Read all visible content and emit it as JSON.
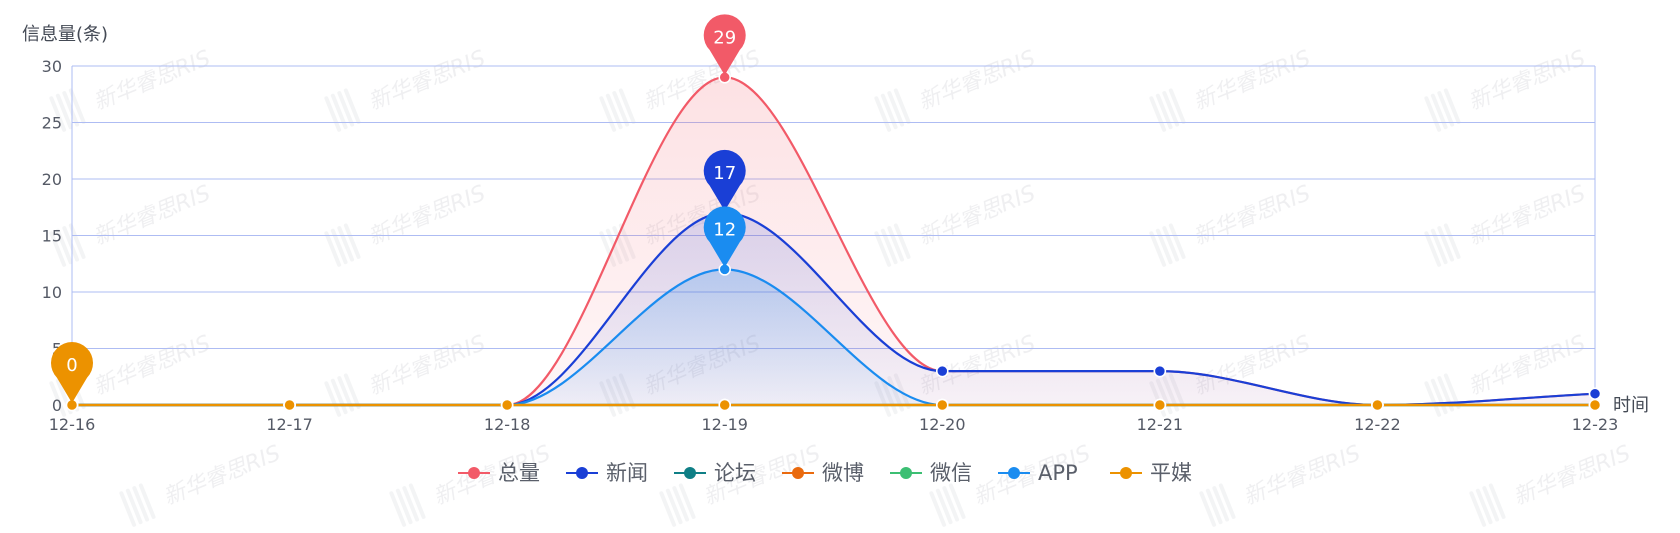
{
  "chart_data": {
    "type": "line",
    "title": "",
    "ylabel": "信息量(条)",
    "xlabel": "时间",
    "ylim": [
      0,
      30
    ],
    "yticks": [
      "0",
      "5",
      "10",
      "15",
      "20",
      "25",
      "30"
    ],
    "categories": [
      "12-16",
      "12-17",
      "12-18",
      "12-19",
      "12-20",
      "12-21",
      "12-22",
      "12-23"
    ],
    "series": [
      {
        "name": "总量",
        "color": "#f25a68",
        "area": true,
        "values": [
          0,
          0,
          0,
          29,
          3,
          3,
          0,
          1
        ]
      },
      {
        "name": "新闻",
        "color": "#1a3fd6",
        "area": true,
        "values": [
          0,
          0,
          0,
          17,
          3,
          3,
          0,
          1
        ]
      },
      {
        "name": "论坛",
        "color": "#0f7f86",
        "area": false,
        "values": [
          0,
          0,
          0,
          0,
          0,
          0,
          0,
          0
        ]
      },
      {
        "name": "微博",
        "color": "#ea6a0e",
        "area": false,
        "values": [
          0,
          0,
          0,
          0,
          0,
          0,
          0,
          0
        ]
      },
      {
        "name": "微信",
        "color": "#3cbf73",
        "area": false,
        "values": [
          0,
          0,
          0,
          0,
          0,
          0,
          0,
          0
        ]
      },
      {
        "name": "APP",
        "color": "#1a8cf0",
        "area": true,
        "values": [
          0,
          0,
          0,
          12,
          0,
          0,
          0,
          0
        ]
      },
      {
        "name": "平媒",
        "color": "#ec9200",
        "area": false,
        "values": [
          0,
          0,
          0,
          0,
          0,
          0,
          0,
          0
        ]
      }
    ],
    "markers": [
      {
        "series": "总量",
        "category": "12-19",
        "value": 29,
        "label": "29"
      },
      {
        "series": "新闻",
        "category": "12-19",
        "value": 17,
        "label": "17"
      },
      {
        "series": "APP",
        "category": "12-19",
        "value": 12,
        "label": "12"
      },
      {
        "series": "平媒",
        "category": "12-16",
        "value": 0,
        "label": "0"
      }
    ],
    "legend_position": "bottom-center",
    "grid": true
  },
  "watermark": "新华睿思RIS"
}
